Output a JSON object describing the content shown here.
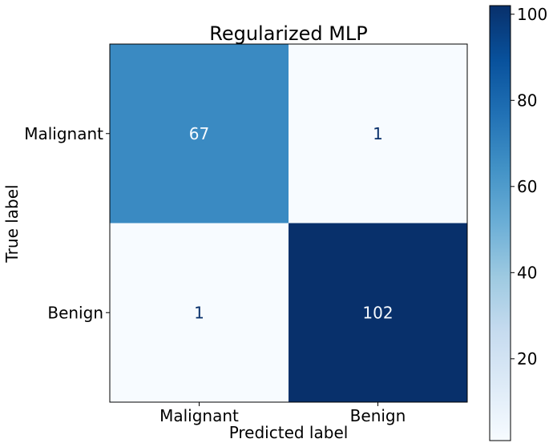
{
  "chart_data": {
    "type": "heatmap",
    "title": "Regularized MLP",
    "xlabel": "Predicted label",
    "ylabel": "True label",
    "x_categories": [
      "Malignant",
      "Benign"
    ],
    "y_categories": [
      "Malignant",
      "Benign"
    ],
    "values": [
      [
        67,
        1
      ],
      [
        1,
        102
      ]
    ],
    "cell_labels": [
      [
        "67",
        "1"
      ],
      [
        "1",
        "102"
      ]
    ],
    "colormap": "Blues",
    "colorbar": {
      "range": [
        1,
        102
      ],
      "ticks": [
        20,
        40,
        60,
        80,
        100
      ],
      "tick_labels": [
        "20",
        "40",
        "60",
        "80",
        "100"
      ]
    },
    "colors": {
      "low": "#f7fbff",
      "high": "#08306b",
      "mid_67": "#3f8fc5",
      "text_dark": "#08306b",
      "text_light": "#f7fbff"
    }
  }
}
